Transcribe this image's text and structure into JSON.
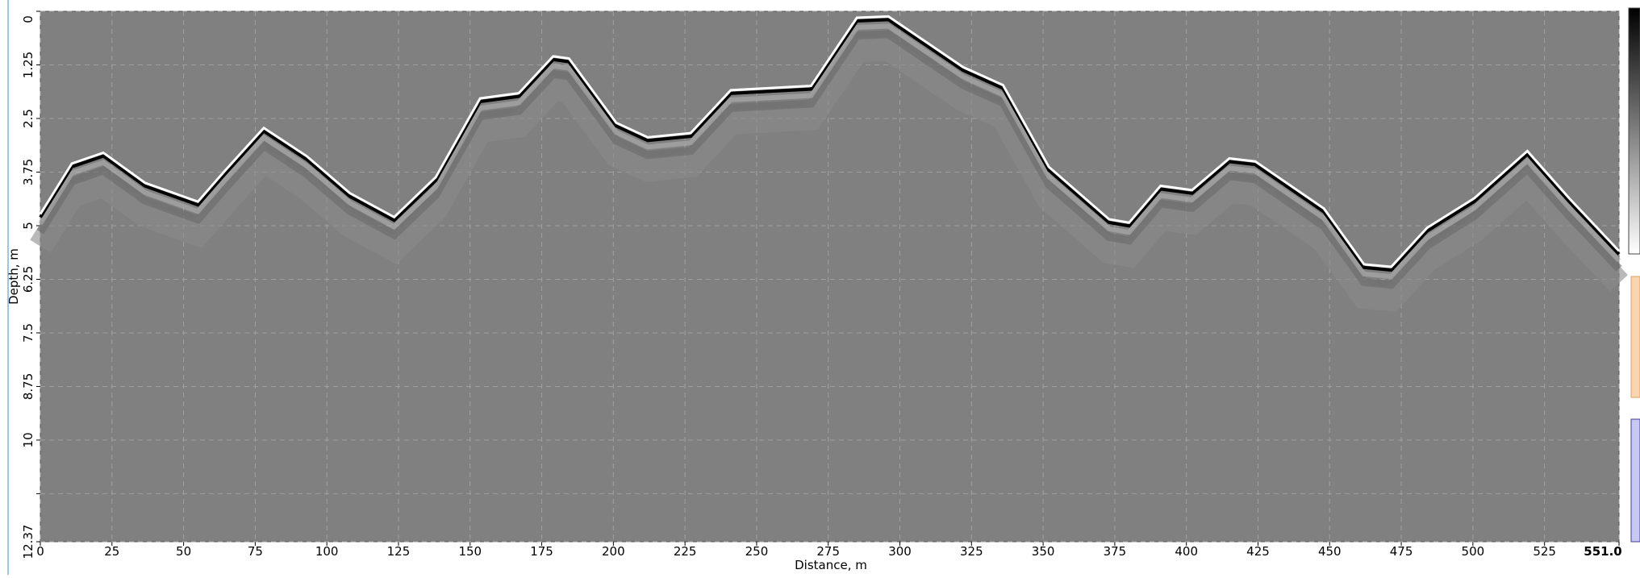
{
  "chart_data": {
    "type": "radargram",
    "x_label": "Distance, m",
    "y_label": "Depth, m",
    "xlim": [
      0,
      551
    ],
    "ylim": [
      0,
      12.37
    ],
    "xticks": [
      0,
      25,
      50,
      75,
      100,
      125,
      150,
      175,
      200,
      225,
      250,
      275,
      300,
      325,
      350,
      375,
      400,
      425,
      450,
      475,
      500,
      525,
      {
        "value": 551,
        "label": "551.0"
      }
    ],
    "yticks": [
      0,
      1.25,
      2.5,
      3.75,
      5,
      6.25,
      7.5,
      8.75,
      10,
      12.37
    ],
    "unlabeled_yticks": [
      11.25
    ],
    "grid": true,
    "y_inverted": true,
    "background": "#808080",
    "x": [
      0,
      11,
      22,
      36.5,
      55,
      64,
      78,
      93,
      108,
      123.5,
      138,
      153.5,
      167,
      179,
      184.5,
      201,
      212,
      227,
      241,
      269,
      285,
      296,
      322,
      336,
      352,
      373,
      380,
      391,
      402,
      415,
      424,
      448,
      462,
      471.5,
      484,
      500.5,
      519,
      533.6,
      551
    ],
    "series": [
      {
        "color": "#ffffff",
        "values": [
          4.73,
          3.55,
          3.3,
          4.0,
          4.44,
          3.75,
          2.72,
          3.38,
          4.24,
          4.8,
          3.87,
          2.03,
          1.91,
          1.05,
          1.1,
          2.6,
          2.94,
          2.84,
          1.84,
          1.74,
          0.15,
          0.12,
          1.3,
          1.72,
          3.63,
          4.85,
          4.93,
          4.07,
          4.17,
          3.43,
          3.5,
          4.6,
          5.9,
          5.96,
          5.05,
          4.36,
          3.26,
          4.36,
          5.59
        ]
      }
    ]
  }
}
